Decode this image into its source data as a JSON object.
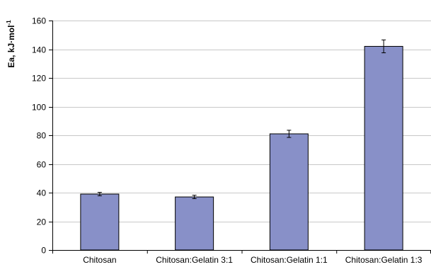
{
  "chart_data": {
    "type": "bar",
    "categories": [
      "Chitosan",
      "Chitosan:Gelatin 3:1",
      "Chitosan:Gelatin 1:1",
      "Chitosan:Gelatin 1:3"
    ],
    "values": [
      39,
      37,
      81,
      142
    ],
    "errors": [
      1.2,
      1.2,
      2.5,
      4.5
    ],
    "title": "",
    "xlabel": "",
    "ylabel": "Ea, kJ·mol",
    "ylabel_superscript": "-1",
    "ylim": [
      0,
      160
    ],
    "yticks": [
      0,
      20,
      40,
      60,
      80,
      100,
      120,
      140,
      160
    ],
    "grid": true,
    "legend": "none",
    "bar_color": "#8890c8"
  }
}
